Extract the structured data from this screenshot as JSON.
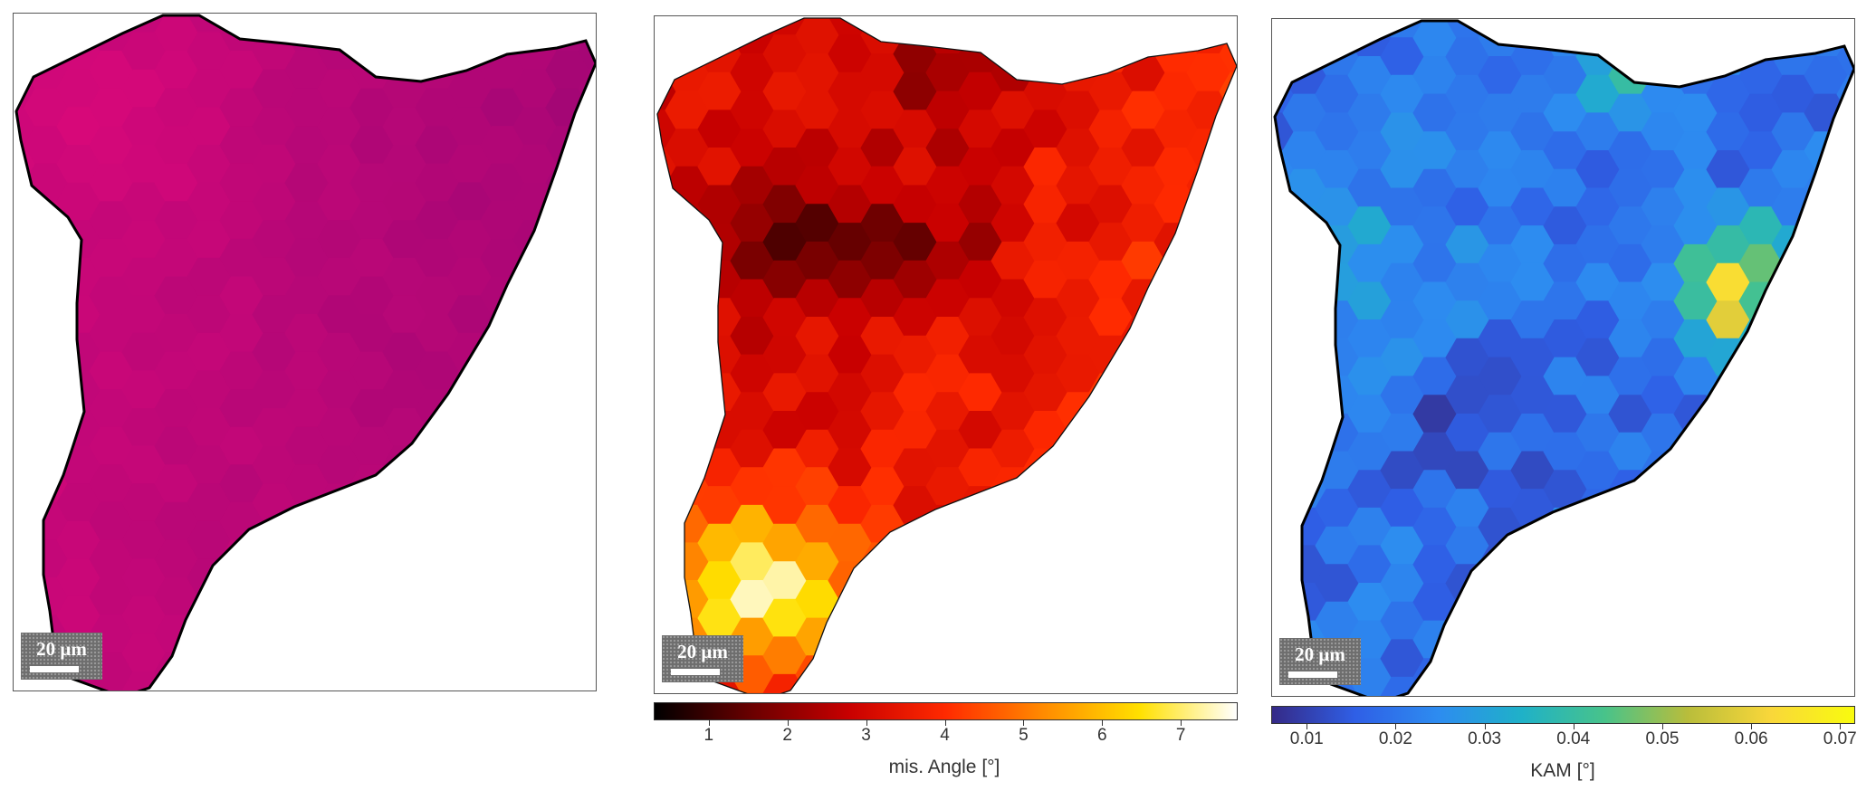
{
  "chart_data": [
    {
      "type": "heatmap",
      "panel": "orientation-map",
      "title": "",
      "colormap": "ipf-orientation",
      "base_color": "#e0097a",
      "hex_grid": true,
      "grain_boundary_color": "#000000",
      "scale_bar": {
        "label": "20 μm"
      },
      "colorbar": null,
      "values_range": [
        0.62,
        1.05
      ]
    },
    {
      "type": "heatmap",
      "panel": "misorientation-angle",
      "title": "",
      "colormap": "hot",
      "colormap_stops": [
        "#000000",
        "#6a0000",
        "#c80000",
        "#ff2a00",
        "#ff8a00",
        "#ffe000",
        "#ffffff"
      ],
      "colorbar": {
        "label": "mis. Angle [°]",
        "range": [
          0.3,
          7.7
        ],
        "ticks": [
          1,
          2,
          3,
          4,
          5,
          6,
          7
        ],
        "tick_labels": [
          "1",
          "2",
          "3",
          "4",
          "5",
          "6",
          "7"
        ]
      },
      "scale_bar": {
        "label": "20 μm"
      },
      "hex_grid": true,
      "notes_on_values": {
        "low_region": "upper-middle (about 0.5–1°)",
        "high_region": "lower-left tip (about 5.5–7.5°)",
        "typical": "2–4°"
      }
    },
    {
      "type": "heatmap",
      "panel": "kam",
      "title": "",
      "colormap": "parula",
      "colormap_stops": [
        "#352a87",
        "#2f5fe6",
        "#2d8cf0",
        "#1fb1c8",
        "#48c38a",
        "#b9bd3b",
        "#f9d73a",
        "#f9fb0e"
      ],
      "colorbar": {
        "label": "KAM [°]",
        "range": [
          0.006,
          0.0715
        ],
        "ticks": [
          0.01,
          0.02,
          0.03,
          0.04,
          0.05,
          0.06,
          0.07
        ],
        "tick_labels": [
          "0.01",
          "0.02",
          "0.03",
          "0.04",
          "0.05",
          "0.06",
          "0.07"
        ]
      },
      "scale_bar": {
        "label": "20 μm"
      },
      "hex_grid": true,
      "notes_on_values": {
        "typical": "0.012–0.025",
        "hotspot": "right edge near middle (about 0.06–0.07)"
      }
    }
  ]
}
